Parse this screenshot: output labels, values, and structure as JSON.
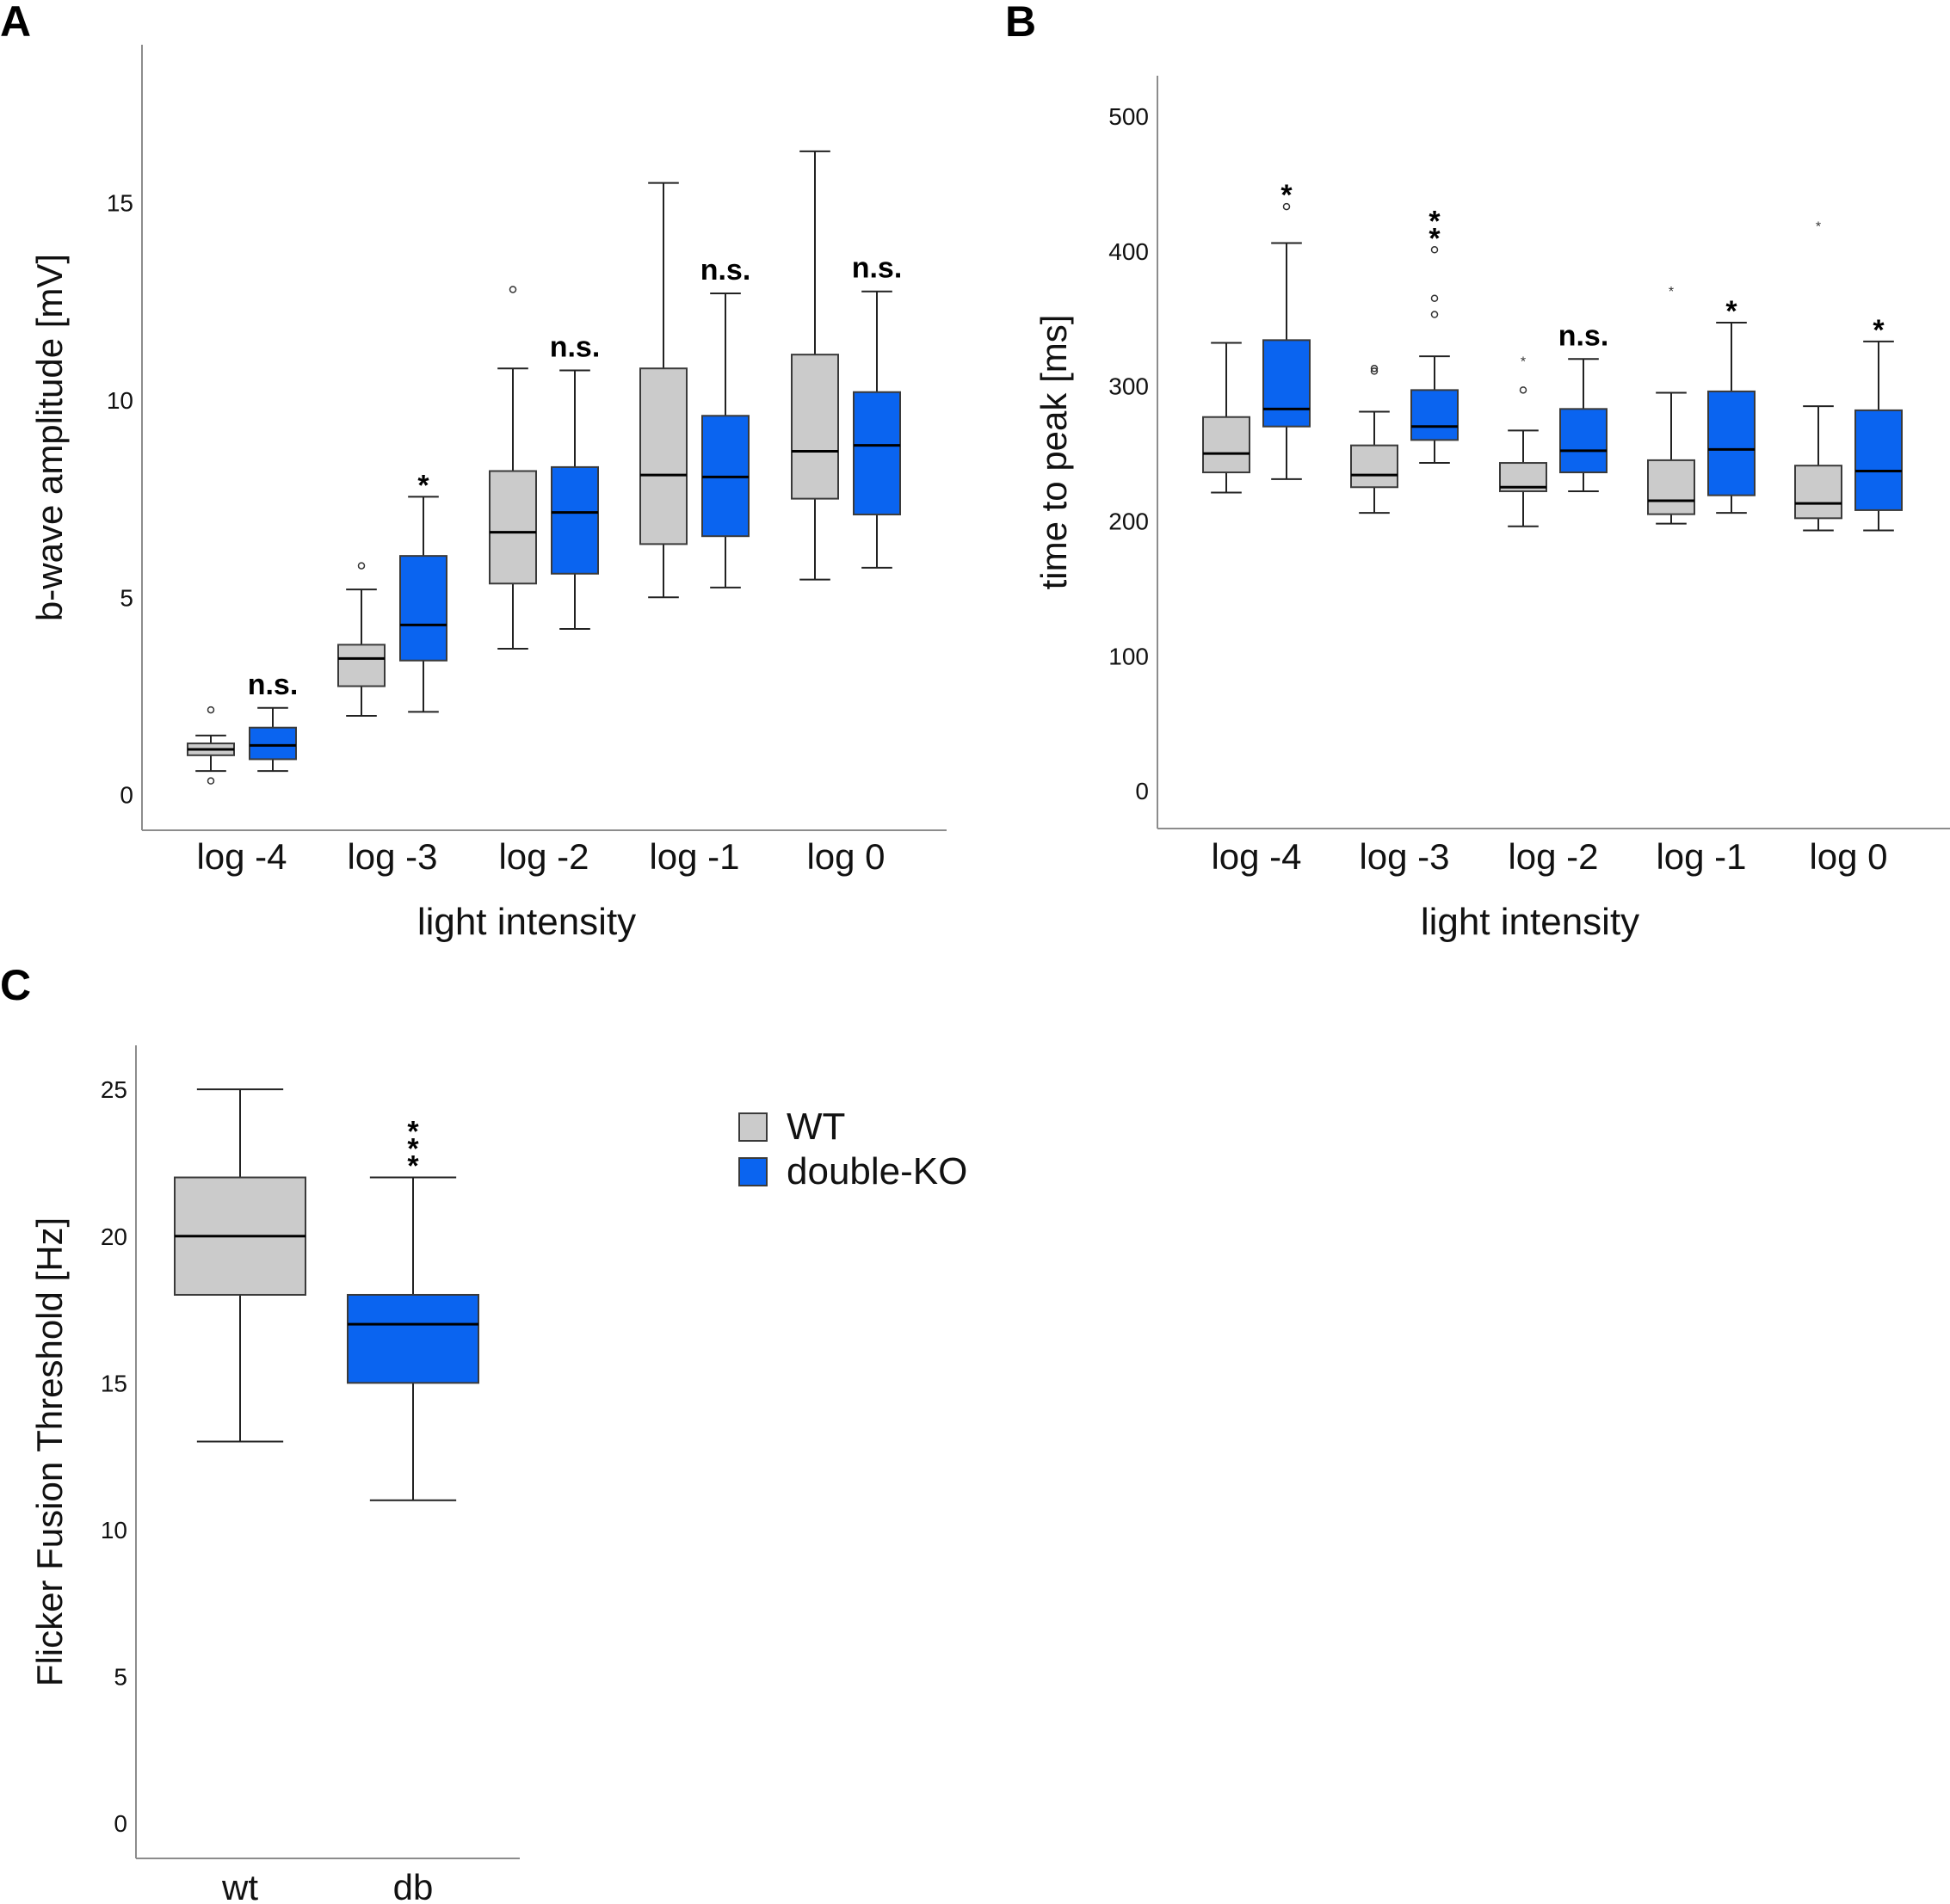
{
  "colors": {
    "wt": "#cbcbcb",
    "dko": "#0a64f0",
    "stroke": "#3a3a3a",
    "axis": "#8c8c8c"
  },
  "legend": {
    "items": [
      {
        "label": "WT",
        "color": "#cbcbcb"
      },
      {
        "label": "double-KO",
        "color": "#0a64f0"
      }
    ]
  },
  "chart_data": [
    {
      "panel": "A",
      "type": "box",
      "xlabel": "light intensity",
      "ylabel": "b-wave amplitude [mV]",
      "ylim": [
        -0.9,
        19
      ],
      "yticks": [
        0,
        5,
        10,
        15
      ],
      "categories": [
        "log -4",
        "log -3",
        "log -2",
        "log -1",
        "log 0"
      ],
      "series": [
        {
          "name": "WT",
          "boxes": [
            {
              "min": 0.6,
              "q1": 1.0,
              "median": 1.15,
              "q3": 1.3,
              "max": 1.5,
              "outliers": [
                2.15,
                0.35
              ]
            },
            {
              "min": 2.0,
              "q1": 2.75,
              "median": 3.45,
              "q3": 3.8,
              "max": 5.2,
              "outliers": [
                5.8
              ]
            },
            {
              "min": 3.7,
              "q1": 5.35,
              "median": 6.65,
              "q3": 8.2,
              "max": 10.8,
              "outliers": [
                12.8
              ]
            },
            {
              "min": 5.0,
              "q1": 6.35,
              "median": 8.1,
              "q3": 10.8,
              "max": 15.5,
              "outliers": []
            },
            {
              "min": 5.45,
              "q1": 7.5,
              "median": 8.7,
              "q3": 11.15,
              "max": 16.3,
              "outliers": []
            }
          ]
        },
        {
          "name": "double-KO",
          "boxes": [
            {
              "min": 0.6,
              "q1": 0.9,
              "median": 1.25,
              "q3": 1.7,
              "max": 2.2,
              "outliers": []
            },
            {
              "min": 2.1,
              "q1": 3.4,
              "median": 4.3,
              "q3": 6.05,
              "max": 7.55,
              "outliers": []
            },
            {
              "min": 4.2,
              "q1": 5.6,
              "median": 7.15,
              "q3": 8.3,
              "max": 10.75,
              "outliers": []
            },
            {
              "min": 5.25,
              "q1": 6.55,
              "median": 8.05,
              "q3": 9.6,
              "max": 12.7,
              "outliers": []
            },
            {
              "min": 5.75,
              "q1": 7.1,
              "median": 8.85,
              "q3": 10.2,
              "max": 12.75,
              "outliers": []
            }
          ]
        }
      ],
      "annotations": [
        "n.s.",
        "*",
        "n.s.",
        "n.s.",
        "n.s."
      ]
    },
    {
      "panel": "B",
      "type": "box",
      "xlabel": "light intensity",
      "ylabel": "time to peak [ms]",
      "ylim": [
        -28,
        530
      ],
      "yticks": [
        0,
        100,
        200,
        300,
        400,
        500
      ],
      "categories": [
        "log -4",
        "log -3",
        "log -2",
        "log -1",
        "log 0"
      ],
      "series": [
        {
          "name": "WT",
          "boxes": [
            {
              "min": 221,
              "q1": 236,
              "median": 250,
              "q3": 277,
              "max": 332,
              "outliers": []
            },
            {
              "min": 206,
              "q1": 225,
              "median": 234,
              "q3": 256,
              "max": 281,
              "outliers": [
                313,
                311
              ]
            },
            {
              "min": 196,
              "q1": 222,
              "median": 225,
              "q3": 243,
              "max": 267,
              "outliers": [
                297
              ],
              "extremes": [
                320
              ]
            },
            {
              "min": 198,
              "q1": 205,
              "median": 215,
              "q3": 245,
              "max": 295,
              "outliers": [],
              "extremes": [
                372
              ]
            },
            {
              "min": 193,
              "q1": 202,
              "median": 213,
              "q3": 241,
              "max": 285,
              "outliers": [],
              "extremes": [
                420
              ]
            }
          ]
        },
        {
          "name": "double-KO",
          "boxes": [
            {
              "min": 231,
              "q1": 270,
              "median": 283,
              "q3": 334,
              "max": 406,
              "outliers": [
                433
              ]
            },
            {
              "min": 243,
              "q1": 260,
              "median": 270,
              "q3": 297,
              "max": 322,
              "outliers": [
                401,
                365,
                353
              ]
            },
            {
              "min": 222,
              "q1": 236,
              "median": 252,
              "q3": 283,
              "max": 320,
              "outliers": []
            },
            {
              "min": 206,
              "q1": 219,
              "median": 253,
              "q3": 296,
              "max": 347,
              "outliers": []
            },
            {
              "min": 193,
              "q1": 208,
              "median": 237,
              "q3": 282,
              "max": 333,
              "outliers": []
            }
          ]
        }
      ],
      "annotations": [
        "*",
        "**",
        "n.s.",
        "*",
        "*"
      ]
    },
    {
      "panel": "C",
      "type": "box",
      "xlabel": "",
      "ylabel": "Flicker Fusion Threshold [Hz]",
      "ylim": [
        -1.2,
        26.5
      ],
      "yticks": [
        0,
        5,
        10,
        15,
        20,
        25
      ],
      "categories": [
        "wt",
        "db"
      ],
      "boxes": [
        {
          "group": "wt",
          "min": 13,
          "q1": 18,
          "median": 20,
          "q3": 22,
          "max": 25,
          "outliers": []
        },
        {
          "group": "db",
          "min": 11,
          "q1": 15,
          "median": 17,
          "q3": 18,
          "max": 22,
          "outliers": []
        }
      ],
      "annotations": [
        "",
        "***"
      ]
    }
  ]
}
